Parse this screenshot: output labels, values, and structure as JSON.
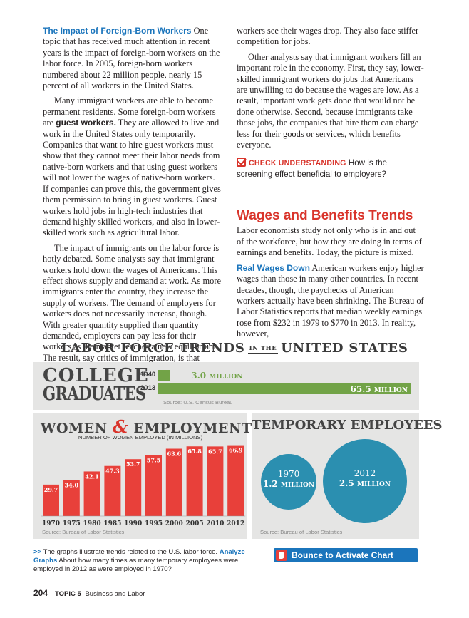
{
  "text": {
    "left": {
      "p1_runin": "The Impact of Foreign-Born Workers",
      "p1_text": " One topic that has received much attention in recent years is the impact of foreign-born workers on the labor force. In 2005, foreign-born workers numbered about 22 million people, nearly 15 percent of all workers in the United States.",
      "p2_pre": "Many immigrant workers are able to become permanent residents. Some foreign-born workers are ",
      "p2_term": "guest workers.",
      "p2_post": " They are allowed to live and work in the United States only temporarily. Companies that want to hire guest workers must show that they cannot meet their labor needs from native-born workers and that using guest workers will not lower the wages of native-born workers. If companies can prove this, the government gives them permission to bring in guest workers. Guest workers hold jobs in high-tech industries that demand highly skilled workers, and also in lower-skilled work such as agricultural labor.",
      "p3": "The impact of immigrants on the labor force is hotly debated. Some analysts say that immigrant workers hold down the wages of Americans. This effect shows supply and demand at work. As more immigrants enter the country, they increase the supply of workers. The demand of employers for workers does not necessarily increase, though. With greater quantity supplied than quantity demanded, employers can pay less for their workers as the market reaches a new equilibrium. The result, say critics of immigration, is that American-born"
    },
    "right": {
      "p4": "workers see their wages drop. They also face stiffer competition for jobs.",
      "p5": "Other analysts say that immigrant workers fill an important role in the economy. First, they say, lower-skilled immigrant workers do jobs that Americans are unwilling to do because the wages are low. As a result, important work gets done that would not be done otherwise. Second, because immigrants take those jobs, the companies that hire them can charge less for their goods or services, which benefits everyone.",
      "check_label": "CHECK UNDERSTANDING",
      "check_question": " How is the screening effect beneficial to employers?",
      "section_heading": "Wages and Benefits Trends",
      "section_intro": "Labor economists study not only who is in and out of the workforce, but how they are doing in terms of earnings and benefits. Today, the picture is mixed.",
      "p6_runin": "Real Wages Down",
      "p6_text": " American workers enjoy higher wages than those in many other countries. In recent decades, though, the paychecks of American workers actually have been shrinking. The Bureau of Labor Statistics reports that median weekly earnings rose from $232 in 1979 to $770 in 2013. In reality, however,"
    }
  },
  "infographic": {
    "title_left": "LABOR FORCE TRENDS",
    "title_mid": "IN THE",
    "title_right": "UNITED STATES",
    "college": {
      "title_line1": "COLLEGE",
      "title_line2": "GRADUATES",
      "source": "Source: U.S. Census Bureau"
    },
    "women": {
      "title_left": "WOMEN",
      "title_amp": "&",
      "title_right": "EMPLOYMENT",
      "subtitle": "NUMBER OF WOMEN EMPLOYED (IN MILLIONS)",
      "source": "Source: Bureau of Labor Statistics"
    },
    "temp": {
      "title": "TEMPORARY EMPLOYEES",
      "source": "Source: Bureau of Labor Statistics",
      "c1_year": "1970",
      "c1_value": "1.2",
      "c1_unit": "MILLION",
      "c2_year": "2012",
      "c2_value": "2.5",
      "c2_unit": "MILLION"
    }
  },
  "caption": {
    "arrows": ">>",
    "text1": " The graphs illustrate trends related to the U.S. labor force. ",
    "analyze": "Analyze Graphs",
    "text2": " About how many times as many temporary employees were employed in 2012 as were employed in 1970?"
  },
  "bounce_button": {
    "label": "Bounce to Activate Chart"
  },
  "footer": {
    "page_number": "204",
    "topic": "TOPIC 5",
    "topic_title": "Business and Labor"
  },
  "colors": {
    "accent_blue": "#1b75bc",
    "accent_red": "#d9342b",
    "green": "#72a347",
    "teal": "#2b8fb0",
    "panel_gray": "#e5e5e4"
  },
  "chart_data": [
    {
      "type": "bar",
      "title": "COLLEGE GRADUATES",
      "orientation": "horizontal",
      "categories": [
        "1940",
        "2013"
      ],
      "values": [
        3.0,
        65.5
      ],
      "value_labels": [
        "3.0",
        "65.5"
      ],
      "unit": "MILLION",
      "xlim": [
        0,
        65.5
      ]
    },
    {
      "type": "bar",
      "title": "WOMEN & EMPLOYMENT",
      "ylabel": "NUMBER OF WOMEN EMPLOYED (IN MILLIONS)",
      "categories": [
        "1970",
        "1975",
        "1980",
        "1985",
        "1990",
        "1995",
        "2000",
        "2005",
        "2010",
        "2012"
      ],
      "values": [
        29.7,
        34.0,
        42.1,
        47.3,
        53.7,
        57.5,
        63.6,
        65.8,
        65.7,
        66.9
      ],
      "value_labels": [
        "29.7",
        "34.0",
        "42.1",
        "47.3",
        "53.7",
        "57.5",
        "63.6",
        "65.8",
        "65.7",
        "66.9"
      ],
      "ylim": [
        0,
        70
      ],
      "grid": false
    },
    {
      "type": "bubble",
      "title": "TEMPORARY EMPLOYEES",
      "categories": [
        "1970",
        "2012"
      ],
      "values": [
        1.2,
        2.5
      ],
      "unit": "MILLION"
    }
  ]
}
